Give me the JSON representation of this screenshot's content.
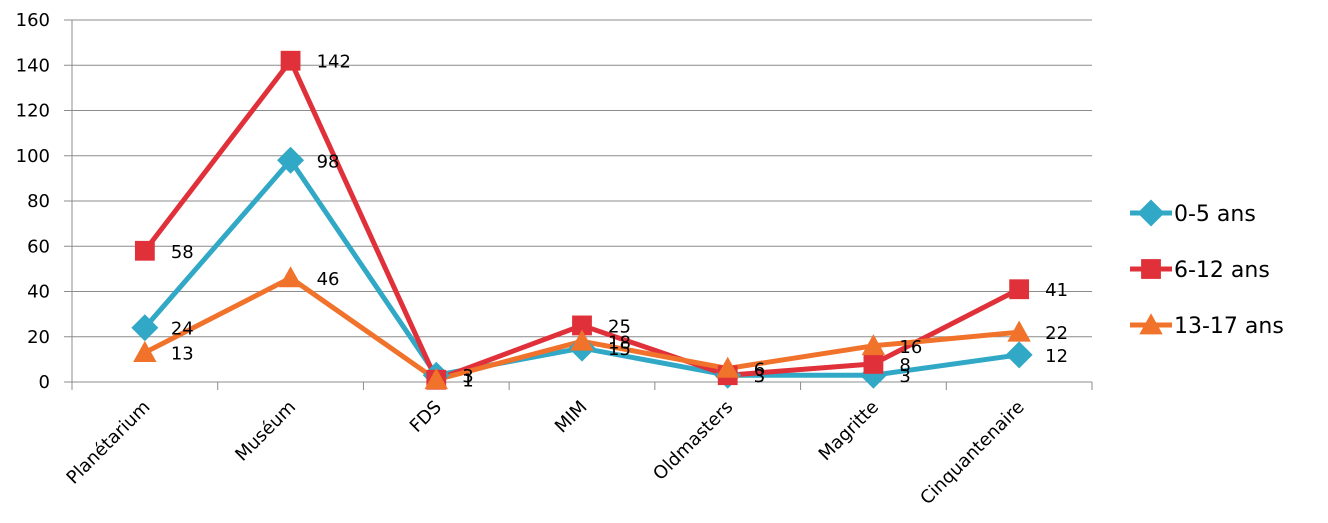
{
  "chart_data": {
    "type": "line",
    "categories": [
      "Planétarium",
      "Muséum",
      "FDS",
      "MIM",
      "Oldmasters",
      "Magritte",
      "Cinquantenaire"
    ],
    "series": [
      {
        "name": "0-5 ans",
        "values": [
          24,
          98,
          3,
          15,
          3,
          3,
          12
        ],
        "color": "#31a9c6",
        "marker": "diamond"
      },
      {
        "name": "6-12 ans",
        "values": [
          58,
          142,
          1,
          25,
          3,
          8,
          41
        ],
        "color": "#e03039",
        "marker": "square"
      },
      {
        "name": "13-17 ans",
        "values": [
          13,
          46,
          1,
          18,
          6,
          16,
          22
        ],
        "color": "#f0722b",
        "marker": "triangle"
      }
    ],
    "data_labels": [
      [
        "24",
        "98",
        "3",
        "15",
        "3",
        "3",
        "12"
      ],
      [
        "58",
        "142",
        "1",
        "25",
        "3",
        "8",
        "41"
      ],
      [
        "13",
        "46",
        "1",
        "18",
        "6",
        "16",
        "22"
      ]
    ],
    "yticks": [
      "0",
      "20",
      "40",
      "60",
      "80",
      "100",
      "120",
      "140",
      "160"
    ],
    "ylim": [
      0,
      160
    ],
    "grid": true,
    "legend": "right",
    "gridline_color": "#8c8c8c"
  }
}
